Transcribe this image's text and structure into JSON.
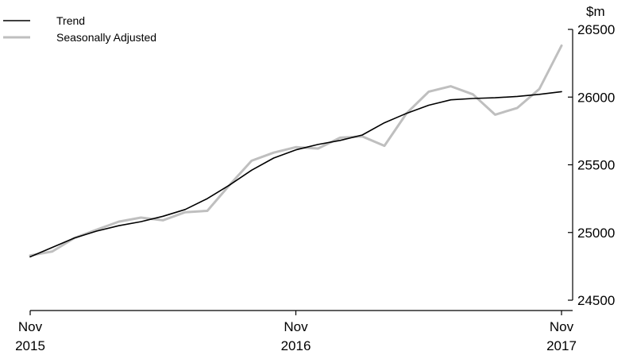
{
  "chart_data": {
    "type": "line",
    "title": "",
    "xlabel": "",
    "ylabel": "$m",
    "ylim": [
      24500,
      26500
    ],
    "grid": false,
    "legend_position": "top-left",
    "x_tick_labels": [
      {
        "month": "Nov",
        "year": "2015"
      },
      {
        "month": "Nov",
        "year": "2016"
      },
      {
        "month": "Nov",
        "year": "2017"
      }
    ],
    "y_ticks": [
      24500,
      25000,
      25500,
      26000,
      26500
    ],
    "x": [
      "2015-11",
      "2015-12",
      "2016-01",
      "2016-02",
      "2016-03",
      "2016-04",
      "2016-05",
      "2016-06",
      "2016-07",
      "2016-08",
      "2016-09",
      "2016-10",
      "2016-11",
      "2016-12",
      "2017-01",
      "2017-02",
      "2017-03",
      "2017-04",
      "2017-05",
      "2017-06",
      "2017-07",
      "2017-08",
      "2017-09",
      "2017-10",
      "2017-11"
    ],
    "series": [
      {
        "name": "Trend",
        "color": "#000000",
        "values": [
          24820,
          24890,
          24960,
          25010,
          25050,
          25080,
          25120,
          25170,
          25250,
          25350,
          25460,
          25550,
          25610,
          25650,
          25680,
          25720,
          25810,
          25880,
          25940,
          25980,
          25990,
          25995,
          26005,
          26020,
          26040
        ]
      },
      {
        "name": "Seasonally Adjusted",
        "color": "#bfbfbf",
        "values": [
          24830,
          24860,
          24960,
          25020,
          25080,
          25110,
          25090,
          25150,
          25160,
          25350,
          25530,
          25590,
          25630,
          25620,
          25700,
          25710,
          25640,
          25880,
          26040,
          26080,
          26020,
          25870,
          25920,
          26060,
          26380
        ]
      }
    ]
  }
}
